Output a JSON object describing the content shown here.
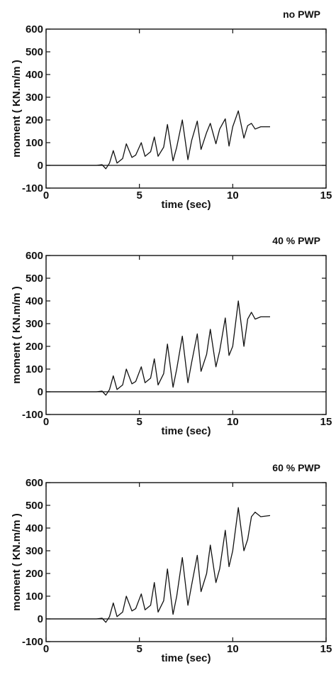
{
  "chart_data": [
    {
      "type": "line",
      "title": "no PWP",
      "xlabel": "time (sec)",
      "ylabel": "moment ( KN.m/m )",
      "xlim": [
        0,
        15
      ],
      "ylim": [
        -100,
        600
      ],
      "xticks": [
        0,
        5,
        10,
        15
      ],
      "yticks": [
        -100,
        0,
        100,
        200,
        300,
        400,
        500,
        600
      ],
      "series": [
        {
          "x": [
            0,
            2.7,
            3.0,
            3.2,
            3.4,
            3.6,
            3.8,
            4.1,
            4.3,
            4.6,
            4.8,
            5.1,
            5.3,
            5.6,
            5.8,
            6.0,
            6.3,
            6.5,
            6.8,
            7.0,
            7.3,
            7.6,
            7.8,
            8.1,
            8.3,
            8.6,
            8.8,
            9.1,
            9.3,
            9.6,
            9.8,
            10.0,
            10.3,
            10.6,
            10.8,
            11.0,
            11.2,
            11.5,
            12.0
          ],
          "y": [
            0,
            0,
            3,
            -15,
            10,
            65,
            10,
            30,
            95,
            35,
            45,
            100,
            40,
            60,
            125,
            40,
            80,
            180,
            20,
            80,
            200,
            25,
            110,
            195,
            70,
            145,
            185,
            95,
            160,
            205,
            85,
            170,
            240,
            120,
            175,
            185,
            160,
            170,
            170
          ]
        }
      ]
    },
    {
      "type": "line",
      "title": "40 % PWP",
      "xlabel": "time (sec)",
      "ylabel": "moment ( KN.m/m )",
      "xlim": [
        0,
        15
      ],
      "ylim": [
        -100,
        600
      ],
      "xticks": [
        0,
        5,
        10,
        15
      ],
      "yticks": [
        -100,
        0,
        100,
        200,
        300,
        400,
        500,
        600
      ],
      "series": [
        {
          "x": [
            0,
            2.7,
            3.0,
            3.2,
            3.4,
            3.6,
            3.8,
            4.1,
            4.3,
            4.6,
            4.8,
            5.1,
            5.3,
            5.6,
            5.8,
            6.0,
            6.3,
            6.5,
            6.8,
            7.0,
            7.3,
            7.6,
            7.8,
            8.1,
            8.3,
            8.6,
            8.8,
            9.1,
            9.3,
            9.6,
            9.8,
            10.0,
            10.3,
            10.6,
            10.8,
            11.0,
            11.2,
            11.5,
            12.0
          ],
          "y": [
            0,
            0,
            3,
            -15,
            10,
            70,
            10,
            30,
            100,
            35,
            45,
            110,
            40,
            60,
            145,
            30,
            80,
            210,
            20,
            100,
            245,
            40,
            130,
            255,
            90,
            165,
            275,
            110,
            180,
            325,
            160,
            200,
            400,
            200,
            320,
            350,
            320,
            330,
            330
          ]
        }
      ]
    },
    {
      "type": "line",
      "title": "60 % PWP",
      "xlabel": "time (sec)",
      "ylabel": "moment ( KN.m/m )",
      "xlim": [
        0,
        15
      ],
      "ylim": [
        -100,
        600
      ],
      "xticks": [
        0,
        5,
        10,
        15
      ],
      "yticks": [
        -100,
        0,
        100,
        200,
        300,
        400,
        500,
        600
      ],
      "series": [
        {
          "x": [
            0,
            2.7,
            3.0,
            3.2,
            3.4,
            3.6,
            3.8,
            4.1,
            4.3,
            4.6,
            4.8,
            5.1,
            5.3,
            5.6,
            5.8,
            6.0,
            6.3,
            6.5,
            6.8,
            7.0,
            7.3,
            7.6,
            7.8,
            8.1,
            8.3,
            8.6,
            8.8,
            9.1,
            9.3,
            9.6,
            9.8,
            10.0,
            10.3,
            10.6,
            10.8,
            11.0,
            11.2,
            11.5,
            12.0
          ],
          "y": [
            0,
            0,
            3,
            -15,
            10,
            70,
            10,
            30,
            100,
            35,
            45,
            110,
            40,
            60,
            160,
            30,
            80,
            220,
            20,
            100,
            270,
            60,
            150,
            280,
            120,
            200,
            325,
            160,
            220,
            390,
            230,
            300,
            490,
            300,
            350,
            450,
            470,
            450,
            455
          ]
        }
      ]
    }
  ]
}
